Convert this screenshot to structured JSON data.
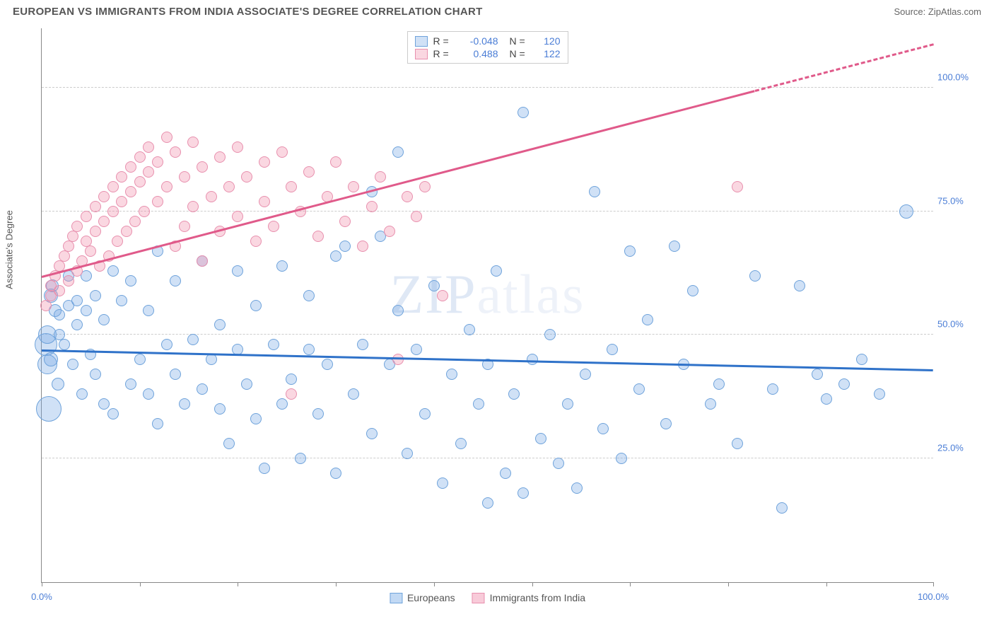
{
  "title": "EUROPEAN VS IMMIGRANTS FROM INDIA ASSOCIATE'S DEGREE CORRELATION CHART",
  "source": "Source: ZipAtlas.com",
  "ylabel": "Associate's Degree",
  "watermark": "ZIPatlas",
  "chart": {
    "type": "scatter",
    "xlim": [
      0,
      100
    ],
    "ylim": [
      0,
      112
    ],
    "x_ticks": [
      0,
      11,
      22,
      33,
      44,
      55,
      66,
      77,
      88,
      100
    ],
    "x_tick_labels": {
      "0": "0.0%",
      "100": "100.0%"
    },
    "y_gridlines": [
      25,
      50,
      75,
      100
    ],
    "y_tick_labels": {
      "25": "25.0%",
      "50": "50.0%",
      "75": "75.0%",
      "100": "100.0%"
    },
    "grid_color": "#cccccc",
    "axis_color": "#888888",
    "background_color": "#ffffff",
    "tick_label_color": "#4a7dd6",
    "label_fontsize": 13,
    "series": [
      {
        "name": "Europeans",
        "fill": "rgba(120,170,230,0.35)",
        "stroke": "#6fa3db",
        "trend": {
          "x1": 0,
          "y1": 47,
          "x2": 100,
          "y2": 43,
          "color": "#2f72c9",
          "width": 3,
          "style": "solid"
        },
        "stats": {
          "R": "-0.048",
          "N": "120"
        },
        "points": [
          [
            0.5,
            48,
            16
          ],
          [
            0.6,
            44,
            14
          ],
          [
            0.6,
            50,
            13
          ],
          [
            0.8,
            35,
            18
          ],
          [
            1,
            58,
            10
          ],
          [
            1,
            45,
            10
          ],
          [
            1.2,
            60,
            9
          ],
          [
            1.5,
            55,
            9
          ],
          [
            1.8,
            40,
            9
          ],
          [
            2,
            54,
            8
          ],
          [
            2,
            50,
            8
          ],
          [
            2.5,
            48,
            8
          ],
          [
            3,
            62,
            8
          ],
          [
            3,
            56,
            8
          ],
          [
            3.5,
            44,
            8
          ],
          [
            4,
            57,
            8
          ],
          [
            4,
            52,
            8
          ],
          [
            4.5,
            38,
            8
          ],
          [
            5,
            55,
            8
          ],
          [
            5,
            62,
            8
          ],
          [
            5.5,
            46,
            8
          ],
          [
            6,
            58,
            8
          ],
          [
            6,
            42,
            8
          ],
          [
            7,
            36,
            8
          ],
          [
            7,
            53,
            8
          ],
          [
            8,
            63,
            8
          ],
          [
            8,
            34,
            8
          ],
          [
            9,
            57,
            8
          ],
          [
            10,
            40,
            8
          ],
          [
            10,
            61,
            8
          ],
          [
            11,
            45,
            8
          ],
          [
            12,
            38,
            8
          ],
          [
            12,
            55,
            8
          ],
          [
            13,
            67,
            8
          ],
          [
            13,
            32,
            8
          ],
          [
            14,
            48,
            8
          ],
          [
            15,
            42,
            8
          ],
          [
            15,
            61,
            8
          ],
          [
            16,
            36,
            8
          ],
          [
            17,
            49,
            8
          ],
          [
            18,
            39,
            8
          ],
          [
            18,
            65,
            8
          ],
          [
            19,
            45,
            8
          ],
          [
            20,
            35,
            8
          ],
          [
            20,
            52,
            8
          ],
          [
            21,
            28,
            8
          ],
          [
            22,
            47,
            8
          ],
          [
            22,
            63,
            8
          ],
          [
            23,
            40,
            8
          ],
          [
            24,
            33,
            8
          ],
          [
            24,
            56,
            8
          ],
          [
            25,
            23,
            8
          ],
          [
            26,
            48,
            8
          ],
          [
            27,
            36,
            8
          ],
          [
            27,
            64,
            8
          ],
          [
            28,
            41,
            8
          ],
          [
            29,
            25,
            8
          ],
          [
            30,
            47,
            8
          ],
          [
            30,
            58,
            8
          ],
          [
            31,
            34,
            8
          ],
          [
            32,
            44,
            8
          ],
          [
            33,
            66,
            8
          ],
          [
            33,
            22,
            8
          ],
          [
            34,
            68,
            8
          ],
          [
            35,
            38,
            8
          ],
          [
            36,
            48,
            8
          ],
          [
            37,
            79,
            8
          ],
          [
            37,
            30,
            8
          ],
          [
            38,
            70,
            8
          ],
          [
            39,
            44,
            8
          ],
          [
            40,
            55,
            8
          ],
          [
            40,
            87,
            8
          ],
          [
            41,
            26,
            8
          ],
          [
            42,
            47,
            8
          ],
          [
            43,
            34,
            8
          ],
          [
            44,
            60,
            8
          ],
          [
            45,
            20,
            8
          ],
          [
            46,
            42,
            8
          ],
          [
            47,
            28,
            8
          ],
          [
            48,
            51,
            8
          ],
          [
            49,
            36,
            8
          ],
          [
            50,
            16,
            8
          ],
          [
            50,
            44,
            8
          ],
          [
            51,
            63,
            8
          ],
          [
            52,
            22,
            8
          ],
          [
            53,
            38,
            8
          ],
          [
            54,
            95,
            8
          ],
          [
            54,
            18,
            8
          ],
          [
            55,
            45,
            8
          ],
          [
            56,
            29,
            8
          ],
          [
            57,
            50,
            8
          ],
          [
            58,
            24,
            8
          ],
          [
            59,
            36,
            8
          ],
          [
            60,
            19,
            8
          ],
          [
            61,
            42,
            8
          ],
          [
            62,
            79,
            8
          ],
          [
            63,
            31,
            8
          ],
          [
            64,
            47,
            8
          ],
          [
            65,
            25,
            8
          ],
          [
            66,
            67,
            8
          ],
          [
            67,
            39,
            8
          ],
          [
            68,
            53,
            8
          ],
          [
            70,
            32,
            8
          ],
          [
            71,
            68,
            8
          ],
          [
            72,
            44,
            8
          ],
          [
            73,
            59,
            8
          ],
          [
            75,
            36,
            8
          ],
          [
            76,
            40,
            8
          ],
          [
            78,
            28,
            8
          ],
          [
            80,
            62,
            8
          ],
          [
            82,
            39,
            8
          ],
          [
            83,
            15,
            8
          ],
          [
            85,
            60,
            8
          ],
          [
            87,
            42,
            8
          ],
          [
            88,
            37,
            8
          ],
          [
            90,
            40,
            8
          ],
          [
            92,
            45,
            8
          ],
          [
            94,
            38,
            8
          ],
          [
            97,
            75,
            10
          ]
        ]
      },
      {
        "name": "Immigrants from India",
        "fill": "rgba(240,140,170,0.35)",
        "stroke": "#e890ae",
        "trend": {
          "x1": 0,
          "y1": 62,
          "x2": 100,
          "y2": 109,
          "color": "#e05a8a",
          "width": 3,
          "style": "solid",
          "dash_after_x": 80
        },
        "stats": {
          "R": "0.488",
          "N": "122"
        },
        "points": [
          [
            0.5,
            56,
            8
          ],
          [
            1,
            58,
            8
          ],
          [
            1,
            60,
            8
          ],
          [
            1.5,
            62,
            8
          ],
          [
            2,
            59,
            8
          ],
          [
            2,
            64,
            8
          ],
          [
            2.5,
            66,
            8
          ],
          [
            3,
            61,
            8
          ],
          [
            3,
            68,
            8
          ],
          [
            3.5,
            70,
            8
          ],
          [
            4,
            63,
            8
          ],
          [
            4,
            72,
            8
          ],
          [
            4.5,
            65,
            8
          ],
          [
            5,
            74,
            8
          ],
          [
            5,
            69,
            8
          ],
          [
            5.5,
            67,
            8
          ],
          [
            6,
            76,
            8
          ],
          [
            6,
            71,
            8
          ],
          [
            6.5,
            64,
            8
          ],
          [
            7,
            78,
            8
          ],
          [
            7,
            73,
            8
          ],
          [
            7.5,
            66,
            8
          ],
          [
            8,
            80,
            8
          ],
          [
            8,
            75,
            8
          ],
          [
            8.5,
            69,
            8
          ],
          [
            9,
            82,
            8
          ],
          [
            9,
            77,
            8
          ],
          [
            9.5,
            71,
            8
          ],
          [
            10,
            84,
            8
          ],
          [
            10,
            79,
            8
          ],
          [
            10.5,
            73,
            8
          ],
          [
            11,
            86,
            8
          ],
          [
            11,
            81,
            8
          ],
          [
            11.5,
            75,
            8
          ],
          [
            12,
            88,
            8
          ],
          [
            12,
            83,
            8
          ],
          [
            13,
            77,
            8
          ],
          [
            13,
            85,
            8
          ],
          [
            14,
            90,
            8
          ],
          [
            14,
            80,
            8
          ],
          [
            15,
            68,
            8
          ],
          [
            15,
            87,
            8
          ],
          [
            16,
            82,
            8
          ],
          [
            16,
            72,
            8
          ],
          [
            17,
            89,
            8
          ],
          [
            17,
            76,
            8
          ],
          [
            18,
            84,
            8
          ],
          [
            18,
            65,
            8
          ],
          [
            19,
            78,
            8
          ],
          [
            20,
            86,
            8
          ],
          [
            20,
            71,
            8
          ],
          [
            21,
            80,
            8
          ],
          [
            22,
            88,
            8
          ],
          [
            22,
            74,
            8
          ],
          [
            23,
            82,
            8
          ],
          [
            24,
            69,
            8
          ],
          [
            25,
            85,
            8
          ],
          [
            25,
            77,
            8
          ],
          [
            26,
            72,
            8
          ],
          [
            27,
            87,
            8
          ],
          [
            28,
            80,
            8
          ],
          [
            28,
            38,
            8
          ],
          [
            29,
            75,
            8
          ],
          [
            30,
            83,
            8
          ],
          [
            31,
            70,
            8
          ],
          [
            32,
            78,
            8
          ],
          [
            33,
            85,
            8
          ],
          [
            34,
            73,
            8
          ],
          [
            35,
            80,
            8
          ],
          [
            36,
            68,
            8
          ],
          [
            37,
            76,
            8
          ],
          [
            38,
            82,
            8
          ],
          [
            39,
            71,
            8
          ],
          [
            40,
            45,
            8
          ],
          [
            41,
            78,
            8
          ],
          [
            42,
            74,
            8
          ],
          [
            43,
            80,
            8
          ],
          [
            45,
            58,
            8
          ],
          [
            78,
            80,
            8
          ]
        ]
      }
    ]
  },
  "legend_bottom": [
    {
      "label": "Europeans",
      "fill": "rgba(120,170,230,0.45)",
      "stroke": "#6fa3db"
    },
    {
      "label": "Immigrants from India",
      "fill": "rgba(240,140,170,0.45)",
      "stroke": "#e890ae"
    }
  ]
}
